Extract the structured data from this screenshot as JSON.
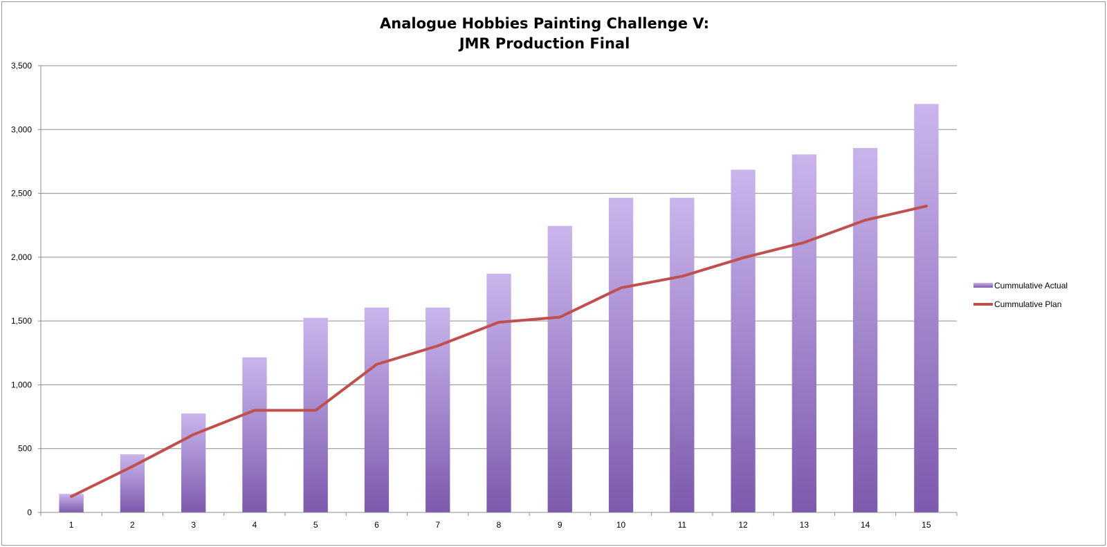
{
  "chart_data": {
    "type": "bar",
    "title": "Analogue Hobbies Painting Challenge V:",
    "subtitle": "JMR Production Final",
    "categories": [
      "1",
      "2",
      "3",
      "4",
      "5",
      "6",
      "7",
      "8",
      "9",
      "10",
      "11",
      "12",
      "13",
      "14",
      "15"
    ],
    "series": [
      {
        "name": "Cummulative Actual",
        "type": "bar",
        "color": "#9b7fcd",
        "values": [
          145,
          455,
          775,
          1215,
          1525,
          1605,
          1605,
          1870,
          2245,
          2465,
          2465,
          2685,
          2805,
          2855,
          3200
        ]
      },
      {
        "name": "Cummulative Plan",
        "type": "line",
        "color": "#c0504d",
        "values": [
          125,
          360,
          610,
          800,
          800,
          1160,
          1305,
          1490,
          1530,
          1760,
          1850,
          1995,
          2115,
          2290,
          2400
        ]
      }
    ],
    "ylim": [
      0,
      3500
    ],
    "yticks": [
      0,
      500,
      1000,
      1500,
      2000,
      2500,
      3000,
      3500
    ],
    "ytick_labels": [
      "0",
      "500",
      "1,000",
      "1,500",
      "2,000",
      "2,500",
      "3,000",
      "3,500"
    ],
    "xlabel": "",
    "ylabel": "",
    "grid": true,
    "legend_position": "right"
  }
}
